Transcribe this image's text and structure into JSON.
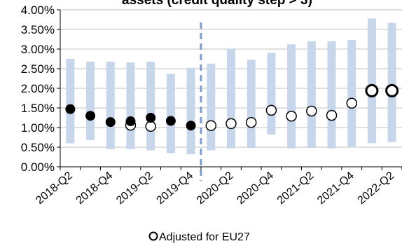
{
  "chart_data": {
    "type": "scatter",
    "title": "assets (credit quality step > 3)",
    "y_ticks": [
      "0.00%",
      "0.50%",
      "1.00%",
      "1.50%",
      "2.00%",
      "2.50%",
      "3.00%",
      "3.50%",
      "4.00%"
    ],
    "ylim": [
      0,
      4
    ],
    "grid": true,
    "x_categories": [
      "2018-Q2",
      "2018-Q3",
      "2018-Q4",
      "2019-Q1",
      "2019-Q2",
      "2019-Q3",
      "2019-Q4",
      "2020-Q1",
      "2020-Q2",
      "2020-Q3",
      "2020-Q4",
      "2021-Q1",
      "2021-Q2",
      "2021-Q3",
      "2021-Q4",
      "2022-Q1",
      "2022-Q2"
    ],
    "x_tick_labels": [
      "2018-Q2",
      "2018-Q4",
      "2019-Q2",
      "2019-Q4",
      "2020-Q2",
      "2020-Q4",
      "2021-Q2",
      "2021-Q4",
      "2022-Q2"
    ],
    "x_tick_label_categories": [
      0,
      2,
      4,
      6,
      8,
      10,
      12,
      14,
      16
    ],
    "break_after_category": 6,
    "range_bars": {
      "color": "#c7d6ea",
      "low": [
        0.6,
        0.68,
        0.45,
        0.45,
        0.42,
        0.35,
        0.32,
        0.42,
        0.47,
        0.48,
        0.82,
        0.47,
        0.48,
        0.47,
        0.52,
        0.6,
        0.63
      ],
      "high": [
        2.75,
        2.68,
        2.68,
        2.66,
        2.68,
        2.37,
        2.52,
        2.63,
        3.0,
        2.73,
        2.9,
        3.12,
        3.2,
        3.2,
        3.23,
        3.78,
        3.67
      ]
    },
    "series": [
      {
        "style": "filled",
        "values": [
          1.47,
          1.3,
          1.14,
          1.16,
          1.25,
          1.17,
          1.05,
          null,
          null,
          null,
          null,
          null,
          null,
          null,
          null,
          null,
          null
        ]
      },
      {
        "style": "hollow",
        "values": [
          null,
          null,
          null,
          1.06,
          1.03,
          null,
          null,
          1.05,
          1.1,
          1.13,
          1.44,
          1.29,
          1.42,
          1.31,
          1.62,
          1.94,
          1.94
        ]
      }
    ],
    "legend": {
      "position": "bottom-center",
      "label": "Adjusted for EU27"
    },
    "colors": {
      "marker": "#000000",
      "break_line": "#7f9ccb",
      "grid": "#c0c0c0"
    }
  }
}
